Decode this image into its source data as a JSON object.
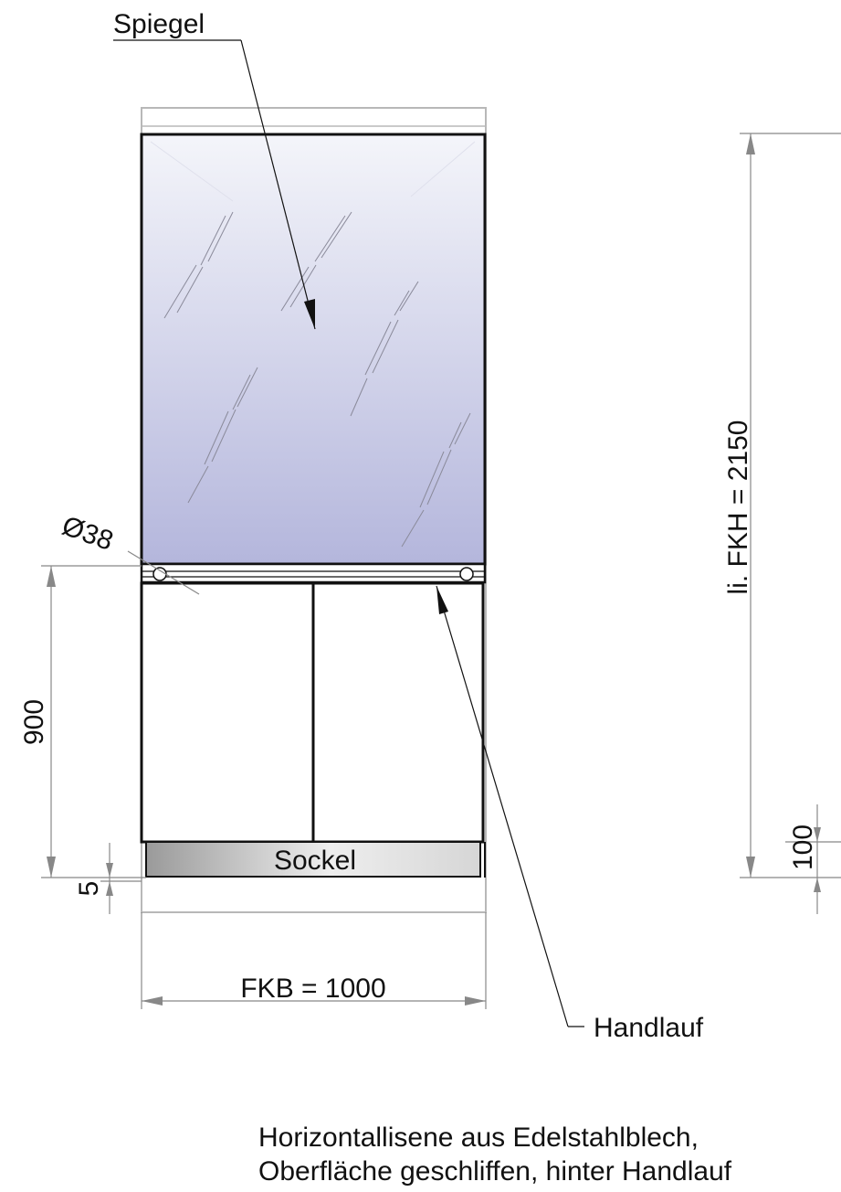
{
  "labels": {
    "mirror": "Spiegel",
    "handrail": "Handlauf",
    "plinth": "Sockel",
    "diameter": "Ø38"
  },
  "dimensions": {
    "height_total": "li. FKH = 2150",
    "width_total": "FKB = 1000",
    "lower_height": "900",
    "plinth_gap": "5",
    "plinth_height": "100"
  },
  "note": {
    "line1": "Horizontallisene aus Edelstahlblech,",
    "line2": "Oberfläche geschliffen, hinter Handlauf"
  }
}
